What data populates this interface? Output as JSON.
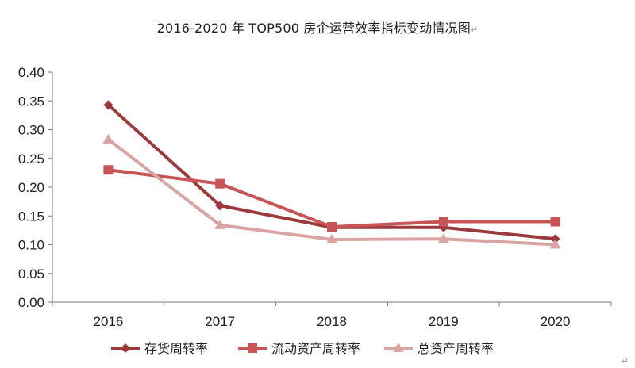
{
  "chart_data": {
    "type": "line",
    "title": "2016-2020 年 TOP500 房企运营效率指标变动情况图",
    "categories": [
      "2016",
      "2017",
      "2018",
      "2019",
      "2020"
    ],
    "ylim": [
      0,
      0.4
    ],
    "yticks": [
      "0.00",
      "0.05",
      "0.10",
      "0.15",
      "0.20",
      "0.25",
      "0.30",
      "0.35",
      "0.40"
    ],
    "grid": false,
    "legend": "bottom",
    "series": [
      {
        "name": "存货周转率",
        "values": [
          0.343,
          0.168,
          0.13,
          0.13,
          0.11
        ],
        "color": "#9B3A3A",
        "marker": "diamond"
      },
      {
        "name": "流动资产周转率",
        "values": [
          0.23,
          0.206,
          0.131,
          0.14,
          0.14
        ],
        "color": "#C95456",
        "marker": "square"
      },
      {
        "name": "总资产周转率",
        "values": [
          0.283,
          0.134,
          0.109,
          0.11,
          0.1
        ],
        "color": "#D9A5A2",
        "marker": "triangle"
      }
    ]
  },
  "return_mark": "↵"
}
